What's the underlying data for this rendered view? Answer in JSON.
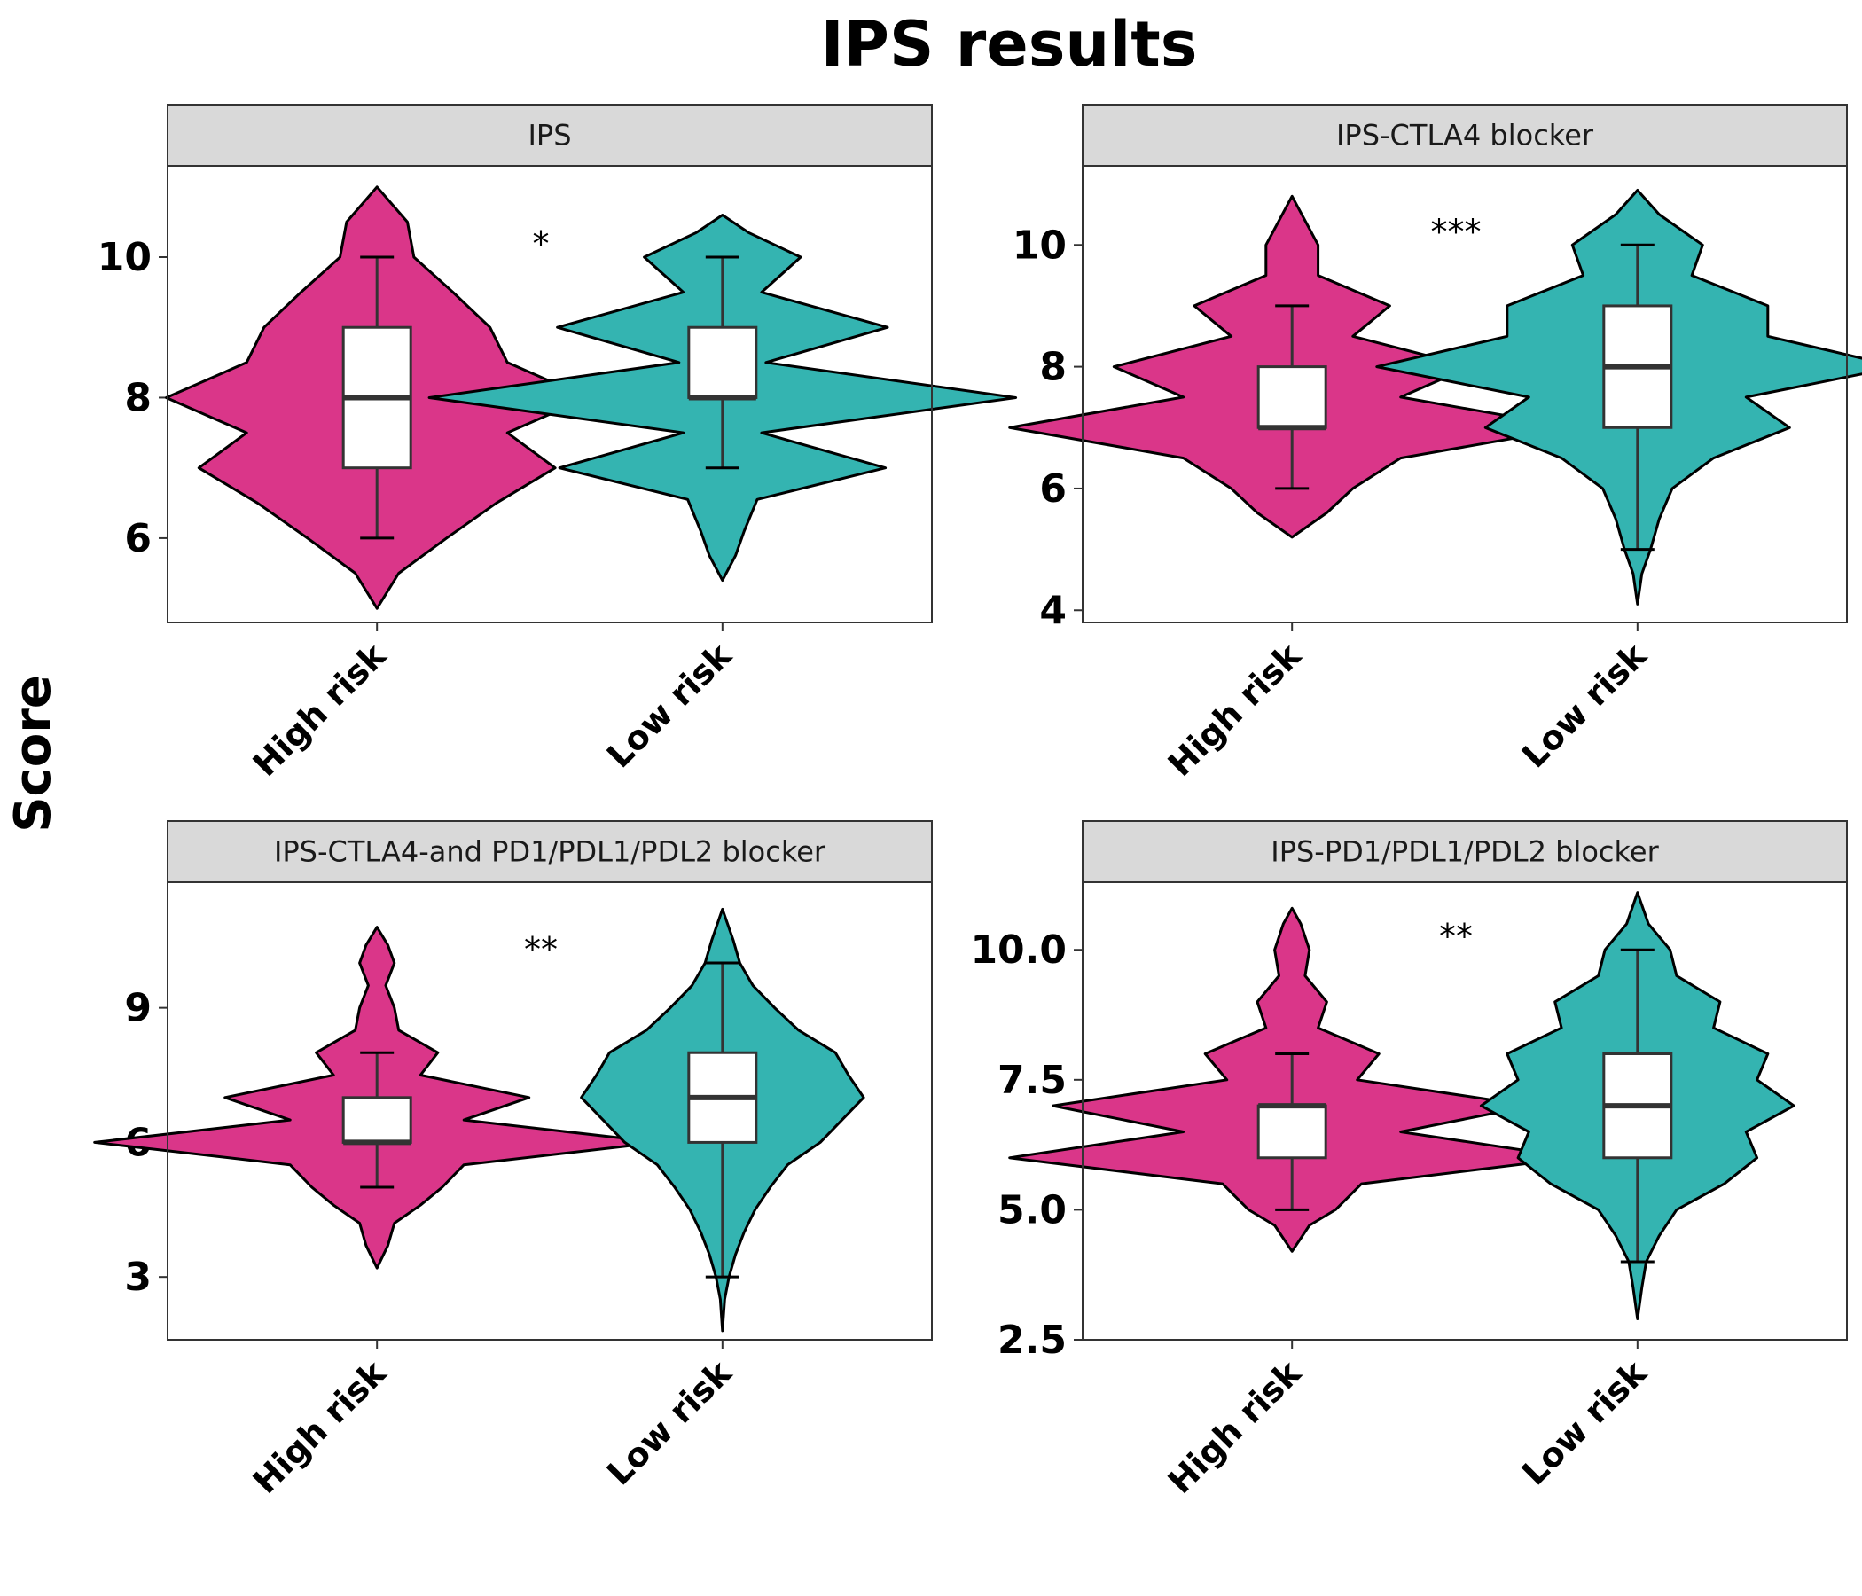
{
  "title": "IPS results",
  "ylabel": "Score",
  "colors": {
    "high_risk": "#DA3689",
    "low_risk": "#34B4B1",
    "strip_bg": "#D9D9D9",
    "box_fill": "#FFFFFF"
  },
  "chart_data": [
    {
      "type": "violin",
      "title": "IPS",
      "significance": "*",
      "ylim": [
        4.8,
        11.3
      ],
      "yticks": [
        6,
        8,
        10
      ],
      "ytick_labels": [
        "6",
        "8",
        "10"
      ],
      "categories": [
        "High risk",
        "Low risk"
      ],
      "series": [
        {
          "name": "High risk",
          "box": {
            "whisker_low": 6,
            "q1": 7,
            "median": 8,
            "q3": 9,
            "whisker_high": 10
          },
          "violin": {
            "y": [
              5,
              5.5,
              6,
              6.5,
              7,
              7.5,
              8,
              8.5,
              9,
              9.5,
              10,
              10.5,
              11
            ],
            "w": [
              0,
              0.1,
              0.32,
              0.55,
              0.82,
              0.6,
              0.97,
              0.6,
              0.52,
              0.35,
              0.17,
              0.14,
              0
            ]
          }
        },
        {
          "name": "Low risk",
          "box": {
            "whisker_low": 7,
            "q1": 8,
            "median": 8,
            "q3": 9,
            "whisker_high": 10
          },
          "violin": {
            "y": [
              5.4,
              5.75,
              6.1,
              6.55,
              7,
              7.5,
              8,
              8.5,
              9,
              9.5,
              10,
              10.35,
              10.6
            ],
            "w": [
              0,
              0.06,
              0.1,
              0.16,
              0.75,
              0.18,
              1.35,
              0.2,
              0.76,
              0.18,
              0.36,
              0.12,
              0
            ]
          }
        }
      ]
    },
    {
      "type": "violin",
      "title": "IPS-CTLA4 blocker",
      "significance": "***",
      "ylim": [
        3.8,
        11.3
      ],
      "yticks": [
        4,
        6,
        8,
        10
      ],
      "ytick_labels": [
        "4",
        "6",
        "8",
        "10"
      ],
      "categories": [
        "High risk",
        "Low risk"
      ],
      "series": [
        {
          "name": "High risk",
          "box": {
            "whisker_low": 6,
            "q1": 7,
            "median": 7,
            "q3": 8,
            "whisker_high": 9
          },
          "violin": {
            "y": [
              5.2,
              5.6,
              6,
              6.5,
              7,
              7.5,
              8,
              8.5,
              9,
              9.5,
              10,
              10.4,
              10.8
            ],
            "w": [
              0,
              0.16,
              0.28,
              0.5,
              1.3,
              0.5,
              0.82,
              0.28,
              0.45,
              0.12,
              0.12,
              0.06,
              0
            ]
          }
        },
        {
          "name": "Low risk",
          "box": {
            "whisker_low": 5,
            "q1": 7,
            "median": 8,
            "q3": 9,
            "whisker_high": 10
          },
          "violin": {
            "y": [
              4.1,
              4.6,
              5,
              5.5,
              6,
              6.5,
              7,
              7.5,
              8,
              8.5,
              9,
              9.5,
              10,
              10.5,
              10.9
            ],
            "w": [
              0,
              0.02,
              0.06,
              0.1,
              0.16,
              0.35,
              0.7,
              0.5,
              1.2,
              0.6,
              0.6,
              0.25,
              0.3,
              0.1,
              0
            ]
          }
        }
      ]
    },
    {
      "type": "violin",
      "title": "IPS-CTLA4-and PD1/PDL1/PDL2 blocker",
      "significance": "**",
      "ylim": [
        1.6,
        11.8
      ],
      "yticks": [
        3,
        6,
        9
      ],
      "ytick_labels": [
        "3",
        "6",
        "9"
      ],
      "categories": [
        "High risk",
        "Low risk"
      ],
      "series": [
        {
          "name": "High risk",
          "box": {
            "whisker_low": 5,
            "q1": 6,
            "median": 6,
            "q3": 7,
            "whisker_high": 8
          },
          "violin": {
            "y": [
              3.2,
              3.7,
              4.2,
              4.6,
              5,
              5.5,
              6,
              6.5,
              7,
              7.5,
              8,
              8.5,
              9,
              9.5,
              10,
              10.4,
              10.8
            ],
            "w": [
              0,
              0.05,
              0.08,
              0.2,
              0.3,
              0.4,
              1.3,
              0.4,
              0.7,
              0.2,
              0.28,
              0.1,
              0.08,
              0.04,
              0.08,
              0.05,
              0
            ]
          }
        },
        {
          "name": "Low risk",
          "box": {
            "whisker_low": 3,
            "q1": 6,
            "median": 7,
            "q3": 8,
            "whisker_high": 10
          },
          "violin": {
            "y": [
              1.8,
              2.5,
              3,
              3.5,
              4,
              4.5,
              5,
              5.5,
              6,
              6.5,
              7,
              7.5,
              8,
              8.5,
              9,
              9.5,
              10,
              10.5,
              11.2
            ],
            "w": [
              0,
              0.01,
              0.03,
              0.06,
              0.1,
              0.15,
              0.22,
              0.3,
              0.45,
              0.55,
              0.65,
              0.58,
              0.52,
              0.35,
              0.24,
              0.14,
              0.08,
              0.05,
              0
            ]
          }
        }
      ]
    },
    {
      "type": "violin",
      "title": "IPS-PD1/PDL1/PDL2 blocker",
      "significance": "**",
      "ylim": [
        2.5,
        11.3
      ],
      "yticks": [
        2.5,
        5.0,
        7.5,
        10.0
      ],
      "ytick_labels": [
        "2.5",
        "5.0",
        "7.5",
        "10.0"
      ],
      "categories": [
        "High risk",
        "Low risk"
      ],
      "series": [
        {
          "name": "High risk",
          "box": {
            "whisker_low": 5,
            "q1": 6,
            "median": 7,
            "q3": 7,
            "whisker_high": 8
          },
          "violin": {
            "y": [
              4.2,
              4.7,
              5,
              5.5,
              6,
              6.5,
              7,
              7.5,
              8,
              8.5,
              9,
              9.5,
              10,
              10.5,
              10.8
            ],
            "w": [
              0,
              0.08,
              0.2,
              0.32,
              1.3,
              0.5,
              1.1,
              0.3,
              0.4,
              0.12,
              0.16,
              0.06,
              0.08,
              0.04,
              0
            ]
          }
        },
        {
          "name": "Low risk",
          "box": {
            "whisker_low": 4,
            "q1": 6,
            "median": 7,
            "q3": 8,
            "whisker_high": 10
          },
          "violin": {
            "y": [
              2.9,
              3.5,
              4,
              4.5,
              5,
              5.5,
              6,
              6.5,
              7,
              7.5,
              8,
              8.5,
              9,
              9.5,
              10,
              10.5,
              11.1
            ],
            "w": [
              0,
              0.02,
              0.04,
              0.1,
              0.18,
              0.4,
              0.55,
              0.5,
              0.72,
              0.55,
              0.6,
              0.35,
              0.38,
              0.18,
              0.15,
              0.05,
              0
            ]
          }
        }
      ]
    }
  ]
}
